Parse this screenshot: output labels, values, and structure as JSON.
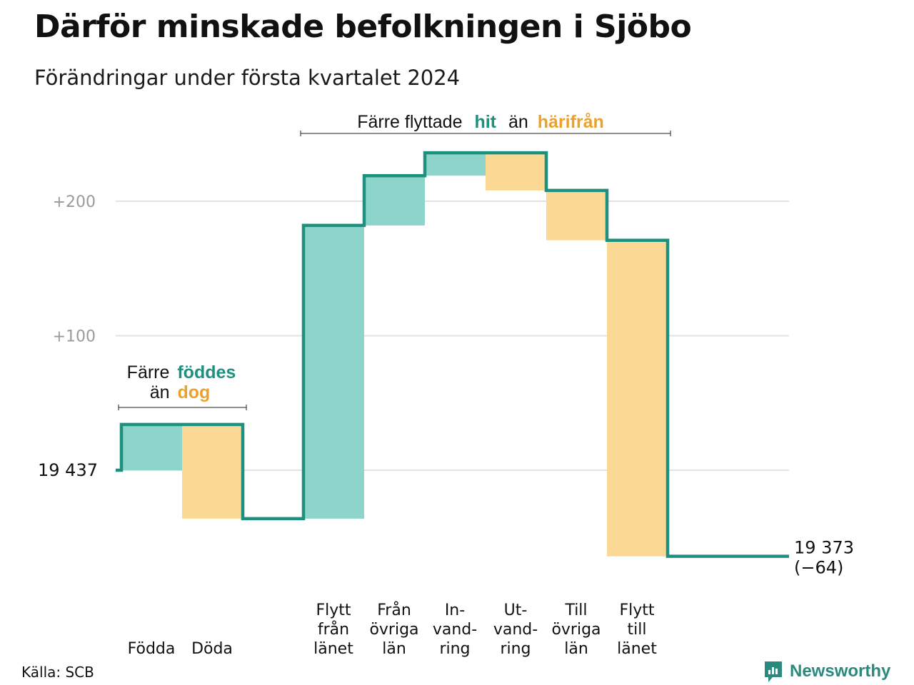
{
  "title": "Därför minskade befolkningen i Sjöbo",
  "subtitle": "Förändringar under första kvartalet 2024",
  "source": "Källa: SCB",
  "brand": "Newsworthy",
  "colors": {
    "increase": "#8dd5ca",
    "decrease": "#fcd895",
    "line": "#1e9080",
    "grid": "#e3e3e3",
    "hit_text": "#1e9080",
    "harifran_text": "#eca22a"
  },
  "chart_data": {
    "type": "waterfall",
    "start_value": 19437,
    "end_value": 19373,
    "net_change": -64,
    "y_ticks": [
      {
        "value": 100,
        "label": "+100"
      },
      {
        "value": 200,
        "label": "+200"
      }
    ],
    "start_label": "19  437",
    "end_label": [
      "19 373",
      "(−64)"
    ],
    "steps": [
      {
        "key": "fodda",
        "label": [
          "Födda"
        ],
        "change": 34
      },
      {
        "key": "doda",
        "label": [
          "Döda"
        ],
        "change": -70
      },
      {
        "key": "flytt_fran_lanet",
        "label": [
          "Flytt",
          "från",
          "länet"
        ],
        "change": 218
      },
      {
        "key": "fran_ovriga_lan",
        "label": [
          "Från",
          "övriga",
          "län"
        ],
        "change": 37
      },
      {
        "key": "invandring",
        "label": [
          "In-",
          "vand-",
          "ring"
        ],
        "change": 17
      },
      {
        "key": "utvandring",
        "label": [
          "Ut-",
          "vand-",
          "ring"
        ],
        "change": -28
      },
      {
        "key": "till_ovriga_lan",
        "label": [
          "Till",
          "övriga",
          "län"
        ],
        "change": -37
      },
      {
        "key": "flytt_till_lanet",
        "label": [
          "Flytt",
          "till",
          "länet"
        ],
        "change": -235
      }
    ],
    "annotations": {
      "births": {
        "parts": [
          "Färre",
          "föddes",
          "än",
          "dog"
        ]
      },
      "moves": {
        "parts": [
          "Färre flyttade",
          "hit",
          "än",
          "härifrån"
        ]
      }
    }
  }
}
